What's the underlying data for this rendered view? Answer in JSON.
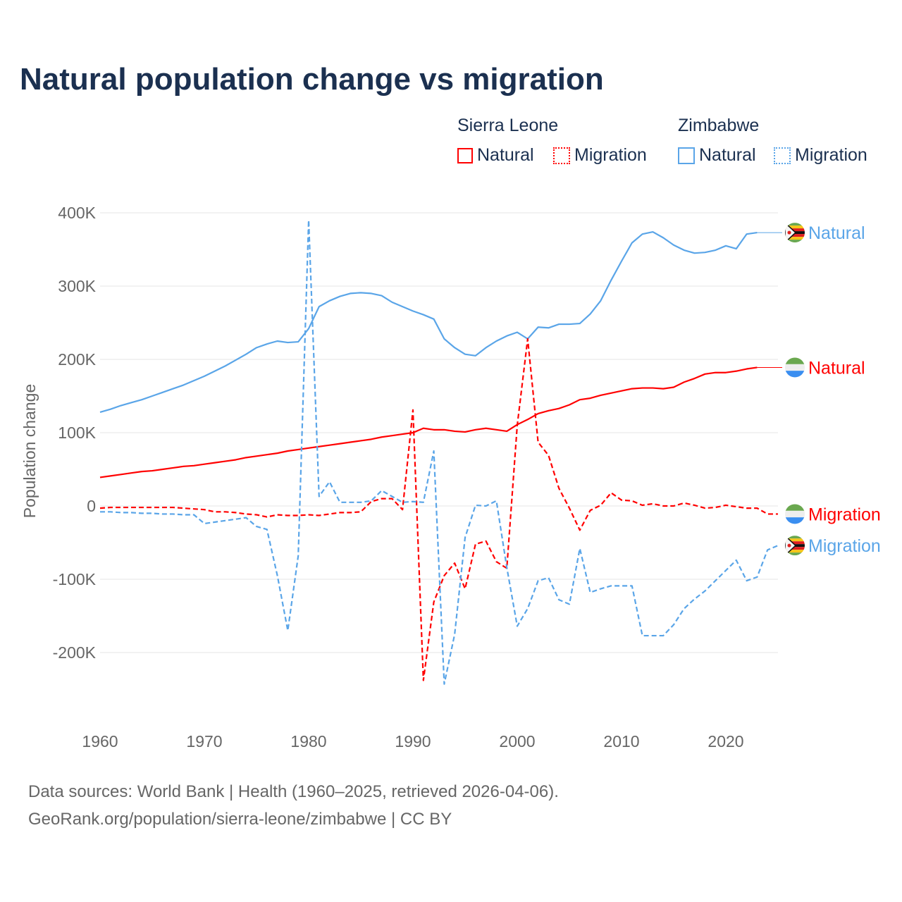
{
  "title": "Natural population change vs migration",
  "legend": {
    "groups": [
      {
        "country": "Sierra Leone",
        "items": [
          "Natural",
          "Migration"
        ]
      },
      {
        "country": "Zimbabwe",
        "items": [
          "Natural",
          "Migration"
        ]
      }
    ]
  },
  "footer": {
    "line1": "Data sources: World Bank | Health (1960–2025, retrieved 2026-04-06).",
    "line2": "GeoRank.org/population/sierra-leone/zimbabwe | CC BY"
  },
  "chart_data": {
    "type": "line",
    "title": "Natural population change vs migration",
    "xlabel": "",
    "ylabel": "Population change",
    "xlim": [
      1960,
      2025
    ],
    "ylim": [
      -250000,
      400000
    ],
    "x_ticks": [
      1960,
      1970,
      1980,
      1990,
      2000,
      2010,
      2020
    ],
    "y_ticks": [
      {
        "v": 400000,
        "label": "400K"
      },
      {
        "v": 300000,
        "label": "300K"
      },
      {
        "v": 200000,
        "label": "200K"
      },
      {
        "v": 100000,
        "label": "100K"
      },
      {
        "v": 0,
        "label": "0"
      },
      {
        "v": -100000,
        "label": "-100K"
      },
      {
        "v": -200000,
        "label": "-200K"
      }
    ],
    "grid": true,
    "legend_position": "top-right",
    "x_start": 1960,
    "series": [
      {
        "name": "Zimbabwe Natural",
        "label": "Natural",
        "color": "#5aa5e8",
        "dash": false,
        "flag": "zimbabwe",
        "values_k": [
          128,
          132,
          137,
          141,
          145,
          150,
          155,
          160,
          165,
          171,
          177,
          184,
          191,
          199,
          207,
          216,
          221,
          225,
          223,
          224,
          242,
          272,
          280,
          286,
          290,
          291,
          290,
          287,
          278,
          272,
          266,
          261,
          255,
          228,
          216,
          207,
          205,
          216,
          225,
          232,
          237,
          228,
          244,
          243,
          248,
          248,
          249,
          262,
          280,
          308,
          334,
          359,
          371,
          374,
          366,
          356,
          349,
          345,
          346,
          349,
          355,
          351,
          371,
          373
        ]
      },
      {
        "name": "Sierra Leone Natural",
        "label": "Natural",
        "color": "#ff0000",
        "dash": false,
        "flag": "sierra-leone",
        "values_k": [
          39,
          41,
          43,
          45,
          47,
          48,
          50,
          52,
          54,
          55,
          57,
          59,
          61,
          63,
          66,
          68,
          70,
          72,
          75,
          77,
          79,
          81,
          83,
          85,
          87,
          89,
          91,
          94,
          96,
          98,
          100,
          106,
          104,
          104,
          102,
          101,
          104,
          106,
          104,
          102,
          111,
          118,
          126,
          130,
          133,
          138,
          145,
          147,
          151,
          154,
          157,
          160,
          161,
          161,
          160,
          162,
          169,
          174,
          180,
          182,
          182,
          184,
          187,
          189
        ]
      },
      {
        "name": "Sierra Leone Migration",
        "label": "Migration",
        "color": "#ff0000",
        "dash": true,
        "flag": "sierra-leone",
        "values_k": [
          -3,
          -2,
          -2,
          -2,
          -2,
          -2,
          -2,
          -2,
          -3,
          -4,
          -5,
          -8,
          -8,
          -9,
          -11,
          -12,
          -15,
          -12,
          -13,
          -13,
          -12,
          -13,
          -11,
          -9,
          -9,
          -8,
          6,
          10,
          10,
          -5,
          131,
          -238,
          -131,
          -95,
          -78,
          -113,
          -52,
          -48,
          -76,
          -85,
          110,
          228,
          87,
          69,
          24,
          -3,
          -33,
          -6,
          1,
          18,
          8,
          7,
          1,
          3,
          0,
          0,
          4,
          1,
          -3,
          -2,
          1,
          -1,
          -3,
          -3,
          -11,
          -11
        ]
      },
      {
        "name": "Zimbabwe Migration",
        "label": "Migration",
        "color": "#5aa5e8",
        "dash": true,
        "flag": "zimbabwe",
        "values_k": [
          -8,
          -8,
          -9,
          -9,
          -10,
          -10,
          -11,
          -11,
          -12,
          -12,
          -24,
          -22,
          -20,
          -18,
          -16,
          -28,
          -32,
          -95,
          -170,
          -68,
          390,
          13,
          33,
          5,
          5,
          5,
          7,
          21,
          13,
          5,
          6,
          5,
          75,
          -243,
          -175,
          -43,
          1,
          0,
          7,
          -84,
          -164,
          -140,
          -102,
          -98,
          -128,
          -134,
          -58,
          -118,
          -113,
          -109,
          -109,
          -109,
          -177,
          -177,
          -177,
          -162,
          -140,
          -127,
          -116,
          -102,
          -88,
          -74,
          -102,
          -97,
          -60,
          -54
        ]
      }
    ]
  }
}
